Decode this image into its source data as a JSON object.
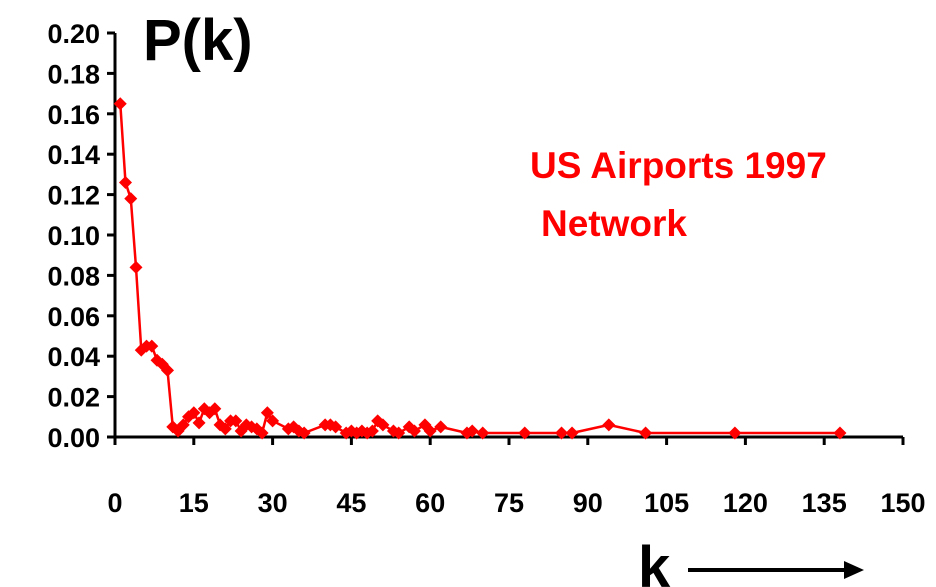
{
  "chart_data": {
    "type": "line",
    "ylabel": "P(k)",
    "xlabel": "k",
    "annotation_lines": [
      "US Airports 1997",
      "Network"
    ],
    "xlim": [
      0,
      150
    ],
    "ylim": [
      0,
      0.2
    ],
    "x_ticks": [
      "0",
      "15",
      "30",
      "45",
      "60",
      "75",
      "90",
      "105",
      "120",
      "135",
      "150"
    ],
    "y_ticks": [
      "0.00",
      "0.02",
      "0.04",
      "0.06",
      "0.08",
      "0.10",
      "0.12",
      "0.14",
      "0.16",
      "0.18",
      "0.20"
    ],
    "colors": {
      "series": "#ff0000",
      "axis": "#000000"
    },
    "grid": false,
    "series": [
      {
        "marker": "diamond",
        "x": [
          1,
          2,
          3,
          4,
          5,
          6,
          7,
          8,
          9,
          10,
          11,
          12,
          13,
          14,
          15,
          16,
          17,
          18,
          19,
          20,
          21,
          22,
          23,
          24,
          25,
          26,
          27,
          28,
          29,
          30,
          33,
          34,
          35,
          36,
          40,
          41,
          42,
          44,
          45,
          46,
          47,
          48,
          49,
          50,
          51,
          53,
          54,
          56,
          57,
          59,
          60,
          62,
          67,
          68,
          70,
          78,
          85,
          87,
          94,
          101,
          118,
          138
        ],
        "y": [
          0.165,
          0.126,
          0.118,
          0.084,
          0.043,
          0.045,
          0.045,
          0.038,
          0.036,
          0.033,
          0.005,
          0.003,
          0.006,
          0.01,
          0.012,
          0.007,
          0.014,
          0.012,
          0.014,
          0.006,
          0.004,
          0.008,
          0.008,
          0.003,
          0.006,
          0.005,
          0.004,
          0.002,
          0.012,
          0.008,
          0.004,
          0.005,
          0.003,
          0.002,
          0.006,
          0.006,
          0.005,
          0.002,
          0.003,
          0.002,
          0.003,
          0.002,
          0.003,
          0.008,
          0.006,
          0.003,
          0.002,
          0.005,
          0.003,
          0.006,
          0.003,
          0.005,
          0.002,
          0.003,
          0.002,
          0.002,
          0.002,
          0.002,
          0.006,
          0.002,
          0.002,
          0.002
        ]
      }
    ]
  }
}
